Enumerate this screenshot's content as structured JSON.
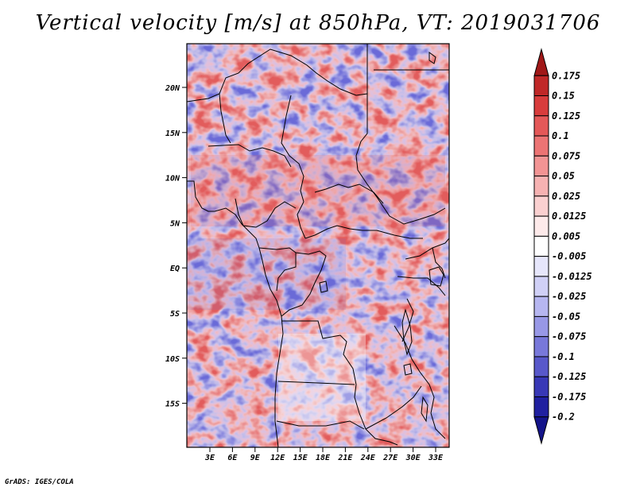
{
  "title": "Vertical velocity [m/s] at 850hPa, VT: 2019031706",
  "footer": "GrADS: IGES/COLA",
  "map": {
    "region": "Central Africa",
    "lat_ticks": [
      "20N",
      "15N",
      "10N",
      "5N",
      "EQ",
      "5S",
      "10S",
      "15S"
    ],
    "lon_ticks": [
      "3E",
      "6E",
      "9E",
      "12E",
      "15E",
      "18E",
      "21E",
      "24E",
      "27E",
      "30E",
      "33E"
    ]
  },
  "colorbar": {
    "labels": [
      "0.175",
      "0.15",
      "0.125",
      "0.1",
      "0.075",
      "0.05",
      "0.025",
      "0.0125",
      "0.005",
      "-0.005",
      "-0.0125",
      "-0.025",
      "-0.05",
      "-0.075",
      "-0.1",
      "-0.125",
      "-0.175",
      "-0.2"
    ],
    "colors": [
      "#a01818",
      "#c02828",
      "#d83c3c",
      "#e45858",
      "#ec7474",
      "#f29494",
      "#f6b2b2",
      "#fad0d0",
      "#fdeaea",
      "#ffffff",
      "#e6e6fb",
      "#d0d0f6",
      "#b6b6f0",
      "#9898e6",
      "#7878da",
      "#5858ca",
      "#3838b6",
      "#2020a0",
      "#14148a"
    ]
  }
}
